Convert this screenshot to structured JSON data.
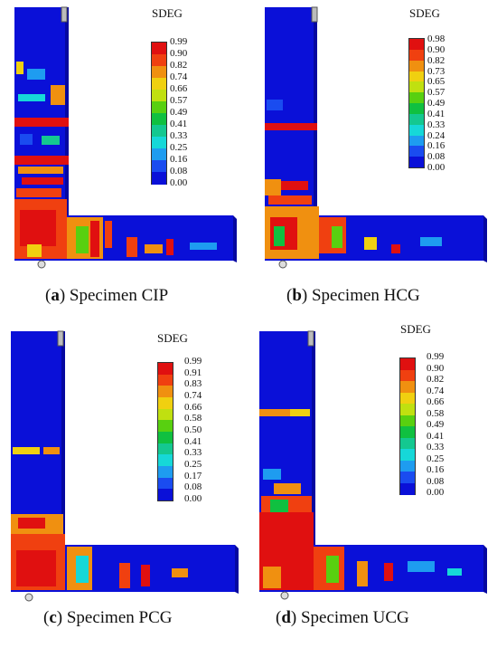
{
  "legend_colors": [
    "#0a10d8",
    "#1a4cf0",
    "#1e9cf0",
    "#16d8d8",
    "#14c890",
    "#10c040",
    "#58d010",
    "#c0e010",
    "#f0d010",
    "#f09010",
    "#f04010",
    "#e01010"
  ],
  "panels": [
    {
      "id": "a",
      "legend_title": "SDEG",
      "legend_values": [
        "0.99",
        "0.90",
        "0.82",
        "0.74",
        "0.66",
        "0.57",
        "0.49",
        "0.41",
        "0.33",
        "0.25",
        "0.16",
        "0.08",
        "0.00"
      ],
      "caption_letter": "a",
      "caption_text": "Specimen CIP"
    },
    {
      "id": "b",
      "legend_title": "SDEG",
      "legend_values": [
        "0.98",
        "0.90",
        "0.82",
        "0.73",
        "0.65",
        "0.57",
        "0.49",
        "0.41",
        "0.33",
        "0.24",
        "0.16",
        "0.08",
        "0.00"
      ],
      "caption_letter": "b",
      "caption_text": "Specimen HCG"
    },
    {
      "id": "c",
      "legend_title": "SDEG",
      "legend_values": [
        "0.99",
        "0.91",
        "0.83",
        "0.74",
        "0.66",
        "0.58",
        "0.50",
        "0.41",
        "0.33",
        "0.25",
        "0.17",
        "0.08",
        "0.00"
      ],
      "caption_letter": "c",
      "caption_text": "Specimen PCG"
    },
    {
      "id": "d",
      "legend_title": "SDEG",
      "legend_values": [
        "0.99",
        "0.90",
        "0.82",
        "0.74",
        "0.66",
        "0.58",
        "0.49",
        "0.41",
        "0.33",
        "0.25",
        "0.16",
        "0.08",
        "0.00"
      ],
      "caption_letter": "d",
      "caption_text": "Specimen UCG"
    }
  ]
}
